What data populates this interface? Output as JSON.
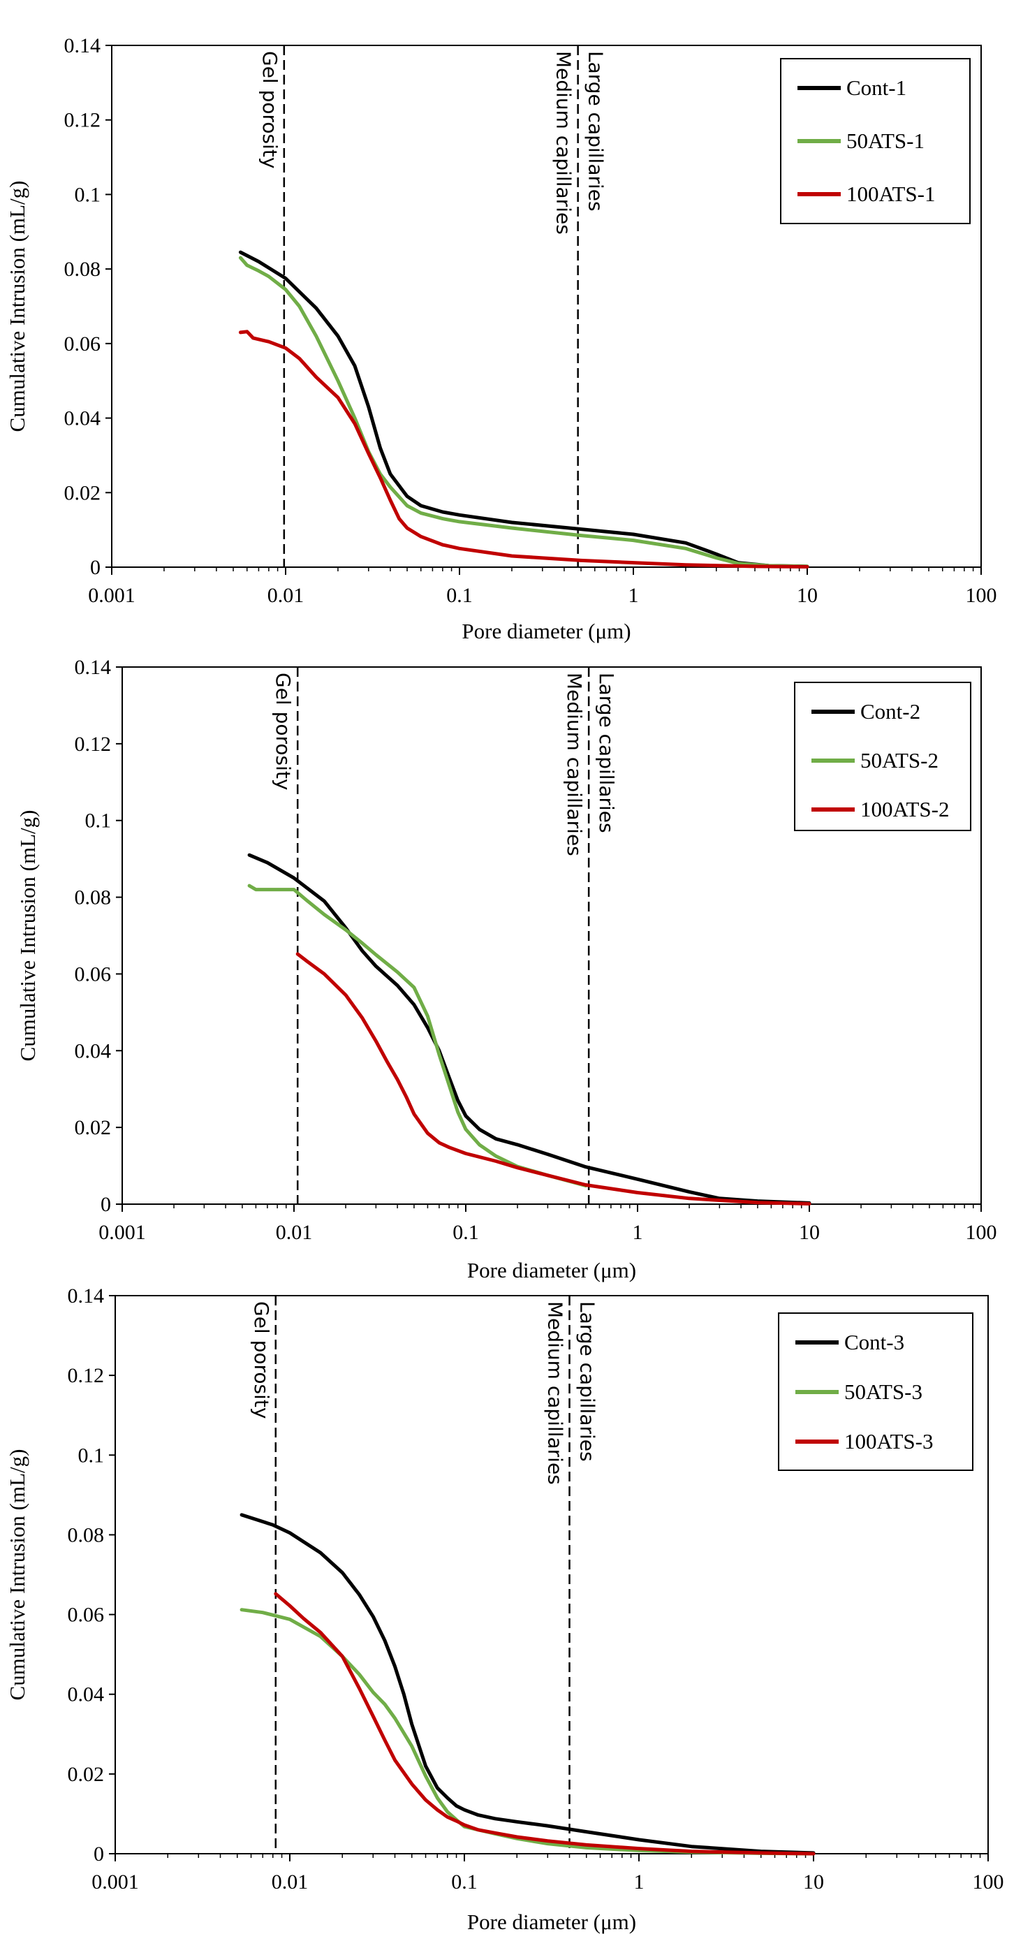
{
  "chart_data": [
    {
      "type": "line",
      "xscale": "log",
      "xlim": [
        0.001,
        100
      ],
      "ylim": [
        0,
        0.14
      ],
      "xticks": [
        "0.001",
        "0.01",
        "0.1",
        "1",
        "10",
        "100"
      ],
      "yticks": [
        "0",
        "0.02",
        "0.04",
        "0.06",
        "0.08",
        "0.1",
        "0.12",
        "0.14"
      ],
      "xlabel": "Pore diameter (μm)",
      "ylabel": "Cumulative Intrusion (mL/g)",
      "legend_position": "top-right",
      "vlines": [
        {
          "x": 0.0098,
          "labels": [
            "Gel porosity"
          ]
        },
        {
          "x": 0.48,
          "labels": [
            "Medium capillaries",
            "Large capillaries"
          ]
        }
      ],
      "series": [
        {
          "name": "Cont-1",
          "color": "#000000",
          "x": [
            0.0055,
            0.007,
            0.01,
            0.015,
            0.02,
            0.025,
            0.03,
            0.035,
            0.04,
            0.05,
            0.06,
            0.08,
            0.1,
            0.2,
            0.5,
            1,
            2,
            3,
            4,
            6,
            10
          ],
          "y": [
            0.0845,
            0.082,
            0.0775,
            0.0695,
            0.062,
            0.054,
            0.043,
            0.032,
            0.025,
            0.019,
            0.0165,
            0.0148,
            0.014,
            0.012,
            0.0102,
            0.0088,
            0.0065,
            0.0035,
            0.0012,
            0.0004,
            0.0002
          ]
        },
        {
          "name": "50ATS-1",
          "color": "#70ad47",
          "x": [
            0.0055,
            0.006,
            0.007,
            0.008,
            0.01,
            0.012,
            0.015,
            0.02,
            0.025,
            0.03,
            0.035,
            0.04,
            0.05,
            0.06,
            0.08,
            0.1,
            0.2,
            0.5,
            1,
            2,
            3,
            4,
            6,
            10
          ],
          "y": [
            0.083,
            0.081,
            0.0795,
            0.078,
            0.0745,
            0.07,
            0.062,
            0.05,
            0.04,
            0.031,
            0.025,
            0.0215,
            0.0165,
            0.0145,
            0.013,
            0.0122,
            0.0105,
            0.0085,
            0.0072,
            0.005,
            0.0025,
            0.001,
            0.0004,
            0.0002
          ]
        },
        {
          "name": "100ATS-1",
          "color": "#c00000",
          "x": [
            0.0055,
            0.006,
            0.0065,
            0.008,
            0.01,
            0.012,
            0.015,
            0.02,
            0.025,
            0.03,
            0.035,
            0.04,
            0.045,
            0.05,
            0.06,
            0.08,
            0.1,
            0.2,
            0.5,
            1,
            2,
            5,
            10
          ],
          "y": [
            0.063,
            0.0632,
            0.0615,
            0.0605,
            0.0588,
            0.056,
            0.051,
            0.0455,
            0.0385,
            0.0305,
            0.024,
            0.018,
            0.013,
            0.0105,
            0.0082,
            0.006,
            0.005,
            0.003,
            0.0018,
            0.0012,
            0.0006,
            0.0002,
            0.0001
          ]
        }
      ]
    },
    {
      "type": "line",
      "xscale": "log",
      "xlim": [
        0.001,
        100
      ],
      "ylim": [
        0,
        0.14
      ],
      "xticks": [
        "0.001",
        "0.01",
        "0.1",
        "1",
        "10",
        "100"
      ],
      "yticks": [
        "0",
        "0.02",
        "0.04",
        "0.06",
        "0.08",
        "0.1",
        "0.12",
        "0.14"
      ],
      "xlabel": "Pore diameter (μm)",
      "ylabel": "Cumulative Intrusion (mL/g)",
      "legend_position": "top-right",
      "vlines": [
        {
          "x": 0.0105,
          "labels": [
            "Gel porosity"
          ]
        },
        {
          "x": 0.52,
          "labels": [
            "Medium capillaries",
            "Large capillaries"
          ]
        }
      ],
      "series": [
        {
          "name": "Cont-2",
          "color": "#000000",
          "x": [
            0.0055,
            0.007,
            0.01,
            0.015,
            0.02,
            0.025,
            0.03,
            0.04,
            0.05,
            0.06,
            0.07,
            0.08,
            0.09,
            0.1,
            0.12,
            0.15,
            0.2,
            0.3,
            0.5,
            1,
            2,
            3,
            5,
            10
          ],
          "y": [
            0.091,
            0.089,
            0.085,
            0.079,
            0.072,
            0.066,
            0.062,
            0.057,
            0.052,
            0.046,
            0.04,
            0.033,
            0.027,
            0.023,
            0.0195,
            0.017,
            0.0155,
            0.013,
            0.0097,
            0.0065,
            0.0032,
            0.0015,
            0.0008,
            0.0003
          ]
        },
        {
          "name": "50ATS-2",
          "color": "#70ad47",
          "x": [
            0.0055,
            0.006,
            0.008,
            0.01,
            0.012,
            0.015,
            0.02,
            0.025,
            0.03,
            0.04,
            0.05,
            0.06,
            0.07,
            0.08,
            0.09,
            0.1,
            0.12,
            0.15,
            0.2,
            0.3,
            0.5
          ],
          "y": [
            0.083,
            0.082,
            0.082,
            0.082,
            0.079,
            0.0755,
            0.0715,
            0.068,
            0.065,
            0.0605,
            0.0565,
            0.049,
            0.039,
            0.031,
            0.024,
            0.0195,
            0.0155,
            0.0125,
            0.0098,
            0.0075,
            0.0048
          ]
        },
        {
          "name": "100ATS-2",
          "color": "#c00000",
          "x": [
            0.0105,
            0.012,
            0.015,
            0.02,
            0.025,
            0.03,
            0.035,
            0.04,
            0.045,
            0.05,
            0.06,
            0.07,
            0.08,
            0.1,
            0.15,
            0.2,
            0.3,
            0.5,
            1,
            2,
            5,
            10
          ],
          "y": [
            0.0652,
            0.0632,
            0.06,
            0.0545,
            0.0485,
            0.0425,
            0.037,
            0.0325,
            0.028,
            0.0235,
            0.0185,
            0.016,
            0.0148,
            0.0132,
            0.0112,
            0.0095,
            0.0075,
            0.005,
            0.003,
            0.0015,
            0.0004,
            0.0001
          ]
        }
      ]
    },
    {
      "type": "line",
      "xscale": "log",
      "xlim": [
        0.001,
        100
      ],
      "ylim": [
        0,
        0.14
      ],
      "xticks": [
        "0.001",
        "0.01",
        "0.1",
        "1",
        "10",
        "100"
      ],
      "yticks": [
        "0",
        "0.02",
        "0.04",
        "0.06",
        "0.08",
        "0.1",
        "0.12",
        "0.14"
      ],
      "xlabel": "Pore diameter (μm)",
      "ylabel": "Cumulative Intrusion (mL/g)",
      "legend_position": "top-right",
      "vlines": [
        {
          "x": 0.0083,
          "labels": [
            "Gel porosity"
          ]
        },
        {
          "x": 0.4,
          "labels": [
            "Medium capillaries",
            "Large capillaries"
          ]
        }
      ],
      "series": [
        {
          "name": "Cont-3",
          "color": "#000000",
          "x": [
            0.0053,
            0.008,
            0.01,
            0.015,
            0.02,
            0.025,
            0.03,
            0.035,
            0.04,
            0.045,
            0.05,
            0.06,
            0.07,
            0.08,
            0.09,
            0.1,
            0.12,
            0.15,
            0.2,
            0.3,
            0.5,
            1,
            2,
            5,
            10
          ],
          "y": [
            0.085,
            0.0825,
            0.0805,
            0.0755,
            0.0705,
            0.065,
            0.0595,
            0.0535,
            0.047,
            0.04,
            0.0325,
            0.022,
            0.0165,
            0.014,
            0.012,
            0.011,
            0.0097,
            0.0088,
            0.008,
            0.007,
            0.0055,
            0.0035,
            0.0018,
            0.0006,
            0.0002
          ]
        },
        {
          "name": "50ATS-3",
          "color": "#70ad47",
          "x": [
            0.0053,
            0.007,
            0.01,
            0.015,
            0.02,
            0.025,
            0.03,
            0.035,
            0.04,
            0.05,
            0.06,
            0.07,
            0.08,
            0.09,
            0.1,
            0.15,
            0.2,
            0.3,
            0.5,
            1,
            2,
            5,
            10
          ],
          "y": [
            0.0612,
            0.0605,
            0.0588,
            0.0545,
            0.0495,
            0.045,
            0.0405,
            0.0375,
            0.034,
            0.027,
            0.0195,
            0.014,
            0.0105,
            0.0085,
            0.0068,
            0.005,
            0.0038,
            0.0025,
            0.0015,
            0.0008,
            0.0004,
            0.0001,
            0.0
          ]
        },
        {
          "name": "100ATS-3",
          "color": "#c00000",
          "x": [
            0.0083,
            0.01,
            0.012,
            0.015,
            0.02,
            0.025,
            0.03,
            0.035,
            0.04,
            0.05,
            0.06,
            0.07,
            0.08,
            0.09,
            0.1,
            0.12,
            0.15,
            0.2,
            0.3,
            0.5,
            1,
            2,
            5,
            10
          ],
          "y": [
            0.0652,
            0.0622,
            0.059,
            0.0555,
            0.0495,
            0.0415,
            0.0345,
            0.0285,
            0.0235,
            0.0175,
            0.0135,
            0.011,
            0.0092,
            0.0082,
            0.0072,
            0.006,
            0.0052,
            0.0042,
            0.0032,
            0.0022,
            0.0013,
            0.0006,
            0.0002,
            0.0
          ]
        }
      ]
    }
  ]
}
